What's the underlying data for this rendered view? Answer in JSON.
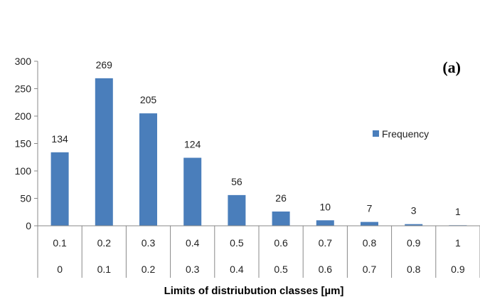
{
  "chart_data": {
    "type": "bar",
    "panel_label": "(a)",
    "xlabel": "Limits of distriubution classes [µm]",
    "ylabel": "",
    "ylim": [
      0,
      300
    ],
    "yticks": [
      "0",
      "50",
      "100",
      "150",
      "200",
      "250",
      "300"
    ],
    "categories_upper": [
      "0.1",
      "0.2",
      "0.3",
      "0.4",
      "0.5",
      "0.6",
      "0.7",
      "0.8",
      "0.9",
      "1"
    ],
    "categories_lower": [
      "0",
      "0.1",
      "0.2",
      "0.3",
      "0.4",
      "0.5",
      "0.6",
      "0.7",
      "0.8",
      "0.9"
    ],
    "series": [
      {
        "name": "Frequency",
        "values": [
          134,
          269,
          205,
          124,
          56,
          26,
          10,
          7,
          3,
          1
        ],
        "color": "#4a7ebb"
      }
    ],
    "data_labels": [
      "134",
      "269",
      "205",
      "124",
      "56",
      "26",
      "10",
      "7",
      "3",
      "1"
    ],
    "legend_position": "right",
    "grid": false
  }
}
